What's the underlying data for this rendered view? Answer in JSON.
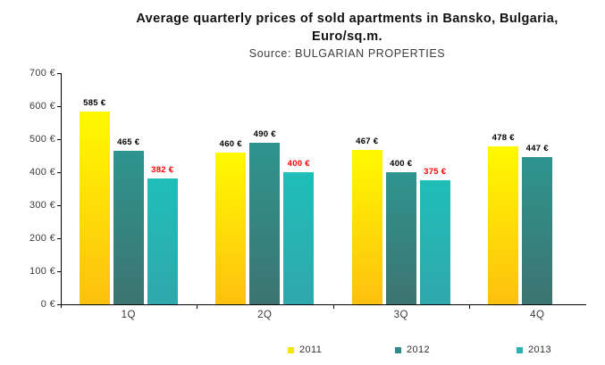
{
  "header": {
    "title_line1": "Average quarterly prices of sold apartments in Bansko, Bulgaria,",
    "title_line2": "Euro/sq.m.",
    "source": "Source: BULGARIAN PROPERTIES"
  },
  "chart_data": {
    "type": "bar",
    "title": "Average quarterly prices of sold apartments in Bansko, Bulgaria, Euro/sq.m.",
    "subtitle": "Source: BULGARIAN PROPERTIES",
    "categories": [
      "1Q",
      "2Q",
      "3Q",
      "4Q"
    ],
    "series": [
      {
        "name": "2011",
        "values": [
          585,
          460,
          467,
          478
        ],
        "color_top": "#FFF900",
        "color_bottom": "#FEC00F",
        "legend_color": "#F3E50B",
        "label_color": "#000000"
      },
      {
        "name": "2012",
        "values": [
          465,
          490,
          400,
          447
        ],
        "color_top": "#2E948E",
        "color_bottom": "#3D7471",
        "legend_color": "#2E8B87",
        "label_color": "#000000"
      },
      {
        "name": "2013",
        "values": [
          382,
          400,
          375,
          null
        ],
        "color_top": "#1FBEB9",
        "color_bottom": "#30A7AC",
        "legend_color": "#2BB4AF",
        "label_color": "#FF0000"
      }
    ],
    "value_suffix": " €",
    "xlabel": "",
    "ylabel": "",
    "ylim": [
      0,
      700
    ],
    "y_tick_step": 100,
    "y_tick_labels": [
      "0 €",
      "100 €",
      "200 €",
      "300 €",
      "400 €",
      "500 €",
      "600 €",
      "700 €"
    ],
    "grid": false,
    "legend_position": "bottom"
  }
}
